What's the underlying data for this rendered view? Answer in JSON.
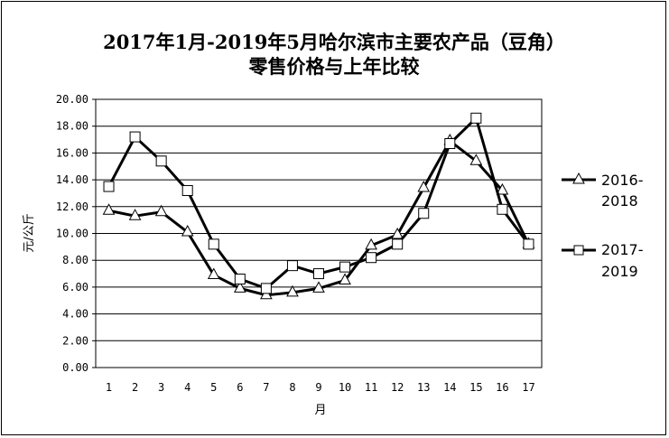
{
  "chart_data": {
    "type": "line",
    "title_line1": "2017年1月-2019年5月哈尔滨市主要农产品（豆角）",
    "title_line2": "零售价格与上年比较",
    "xlabel": "月",
    "ylabel": "元/公斤",
    "x": [
      1,
      2,
      3,
      4,
      5,
      6,
      7,
      8,
      9,
      10,
      11,
      12,
      13,
      14,
      15,
      16,
      17
    ],
    "yticks": [
      "0.00",
      "2.00",
      "4.00",
      "6.00",
      "8.00",
      "10.00",
      "12.00",
      "14.00",
      "16.00",
      "18.00",
      "20.00"
    ],
    "ylim": [
      0,
      20
    ],
    "grid": true,
    "legend_position": "right",
    "series": [
      {
        "name_line1": "2016-",
        "name_line2": "2018",
        "marker": "triangle",
        "values": [
          11.7,
          11.3,
          11.6,
          10.1,
          6.9,
          5.9,
          5.4,
          5.6,
          5.9,
          6.5,
          9.1,
          9.9,
          13.4,
          16.9,
          15.4,
          13.2,
          9.2
        ]
      },
      {
        "name_line1": "2017-",
        "name_line2": "2019",
        "marker": "square",
        "values": [
          13.5,
          17.2,
          15.4,
          13.2,
          9.2,
          6.6,
          5.9,
          7.6,
          7.0,
          7.5,
          8.2,
          9.2,
          11.5,
          16.7,
          18.6,
          11.8,
          9.2
        ]
      }
    ],
    "colors": {
      "line": "#000000",
      "marker_fill": "#ffffff",
      "grid": "#000000"
    }
  }
}
